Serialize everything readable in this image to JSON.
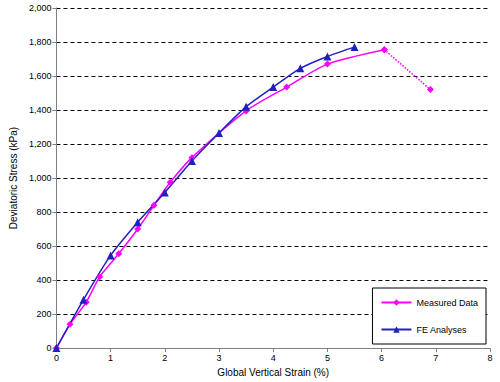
{
  "chart_data": {
    "type": "line",
    "x_label": "Global Vertical Strain (%)",
    "y_label": "Deviatoric Stress (kPa)",
    "xlim": [
      0,
      8
    ],
    "xticks": [
      0,
      1,
      2,
      3,
      4,
      5,
      6,
      7,
      8
    ],
    "ylim": [
      0,
      2000
    ],
    "yticks": [
      0,
      200,
      400,
      600,
      800,
      {
        "value": 1000,
        "label": "1,000"
      },
      {
        "value": 1200,
        "label": "1,200"
      },
      {
        "value": 1400,
        "label": "1,400"
      },
      {
        "value": 1600,
        "label": "1,600"
      },
      {
        "value": 1800,
        "label": "1,800"
      },
      {
        "value": 2000,
        "label": "2,000"
      }
    ],
    "grid": true,
    "legend": "lower right",
    "series": [
      {
        "name": "Measured Data",
        "color": "#ff00ff",
        "marker": "diamond",
        "line_style": "solid",
        "x": [
          0,
          0.25,
          0.55,
          0.8,
          1.15,
          1.5,
          1.8,
          2.1,
          2.5,
          3.5,
          4.25,
          5.0,
          6.05
        ],
        "values": [
          0,
          140,
          270,
          420,
          555,
          700,
          840,
          975,
          1120,
          1395,
          1535,
          1670,
          1755
        ]
      },
      {
        "name": "Measured Data",
        "color": "#ff00ff",
        "marker": "diamond",
        "line_style": "dotted",
        "x": [
          6.05,
          6.9
        ],
        "values": [
          1755,
          1520
        ]
      },
      {
        "name": "FE Analyses",
        "color": "#2020c0",
        "marker": "triangle",
        "line_style": "solid",
        "x": [
          0,
          0.5,
          1.0,
          1.5,
          2.0,
          2.5,
          3.0,
          3.5,
          4.0,
          4.5,
          5.0,
          5.5
        ],
        "values": [
          0,
          285,
          545,
          740,
          915,
          1100,
          1265,
          1420,
          1535,
          1645,
          1715,
          1770
        ]
      }
    ]
  }
}
